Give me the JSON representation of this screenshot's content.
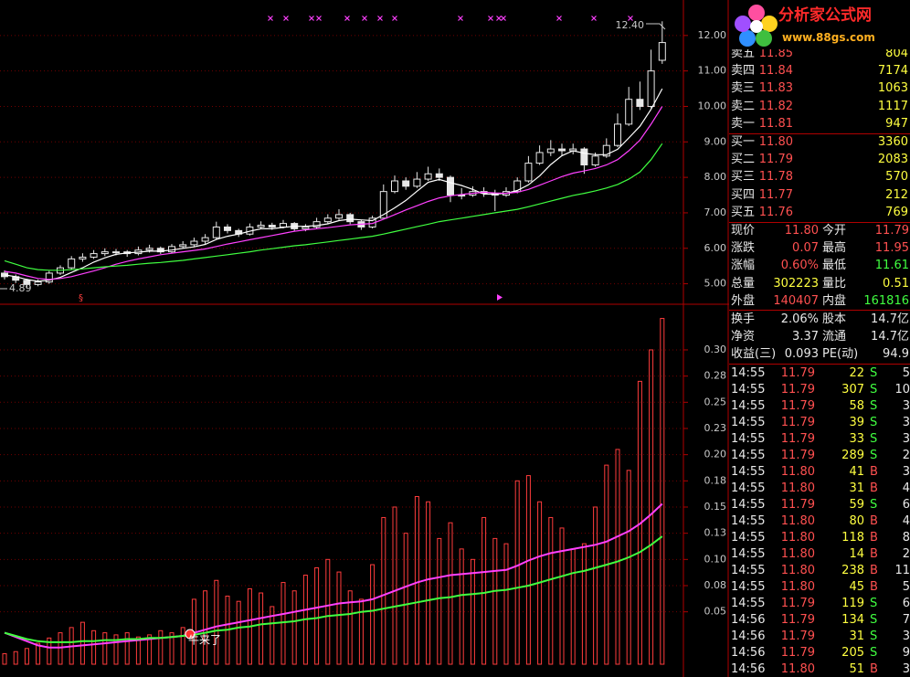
{
  "chart_data": [
    {
      "type": "candlestick",
      "color": "#e8e8e8",
      "grid": true,
      "ylim": [
        4.5,
        13
      ],
      "yticks": [
        {
          "value": 5,
          "label": "5.00"
        },
        {
          "value": 6,
          "label": "6.00"
        },
        {
          "value": 7,
          "label": "7.00"
        },
        {
          "value": 8,
          "label": "8.00"
        },
        {
          "value": 9,
          "label": "9.00"
        },
        {
          "value": 10,
          "label": "10.00"
        },
        {
          "value": 11,
          "label": "11.00"
        },
        {
          "value": 12,
          "label": "12.00"
        }
      ],
      "open": [
        5.3,
        5.2,
        5.1,
        4.98,
        5.05,
        5.3,
        5.45,
        5.7,
        5.75,
        5.85,
        5.9,
        5.9,
        5.85,
        5.95,
        6.0,
        5.9,
        6.05,
        6.1,
        6.2,
        6.3,
        6.6,
        6.5,
        6.4,
        6.6,
        6.65,
        6.6,
        6.7,
        6.55,
        6.6,
        6.75,
        6.85,
        6.95,
        6.75,
        6.6,
        6.85,
        7.6,
        7.9,
        7.75,
        7.95,
        8.1,
        8.0,
        7.5,
        7.5,
        7.6,
        7.55,
        7.5,
        7.6,
        7.9,
        8.4,
        8.7,
        8.8,
        8.75,
        8.8,
        8.35,
        8.6,
        8.9,
        9.5,
        10.2,
        10.0,
        11.3
      ],
      "high": [
        5.38,
        5.26,
        5.14,
        5.12,
        5.36,
        5.52,
        5.78,
        5.86,
        5.95,
        6.0,
        5.98,
        5.95,
        6.05,
        6.1,
        6.05,
        6.12,
        6.2,
        6.3,
        6.4,
        6.75,
        6.68,
        6.55,
        6.7,
        6.76,
        6.72,
        6.8,
        6.74,
        6.68,
        6.86,
        6.96,
        7.1,
        7.0,
        6.8,
        6.92,
        7.8,
        8.05,
        8.0,
        8.15,
        8.3,
        8.25,
        8.05,
        7.7,
        7.75,
        7.72,
        7.65,
        7.72,
        8.0,
        8.6,
        8.9,
        9.05,
        8.95,
        8.95,
        8.85,
        8.7,
        9.1,
        9.8,
        10.55,
        10.7,
        11.6,
        12.4
      ],
      "low": [
        5.12,
        5.02,
        4.89,
        4.93,
        5.0,
        5.25,
        5.4,
        5.62,
        5.7,
        5.78,
        5.8,
        5.76,
        5.8,
        5.88,
        5.84,
        5.86,
        6.0,
        6.05,
        6.12,
        6.25,
        6.42,
        6.32,
        6.36,
        6.55,
        6.52,
        6.56,
        6.48,
        6.48,
        6.56,
        6.7,
        6.8,
        6.68,
        6.52,
        6.56,
        6.85,
        7.55,
        7.65,
        7.7,
        7.9,
        7.9,
        7.3,
        7.38,
        7.45,
        7.45,
        7.05,
        7.45,
        7.55,
        7.85,
        8.35,
        8.6,
        8.6,
        8.65,
        8.1,
        8.3,
        8.55,
        8.85,
        9.45,
        9.9,
        9.95,
        11.2
      ],
      "close": [
        5.2,
        5.1,
        4.98,
        5.05,
        5.3,
        5.45,
        5.7,
        5.75,
        5.85,
        5.9,
        5.9,
        5.85,
        5.95,
        6.0,
        5.9,
        6.05,
        6.1,
        6.2,
        6.3,
        6.6,
        6.5,
        6.4,
        6.6,
        6.65,
        6.6,
        6.7,
        6.55,
        6.6,
        6.75,
        6.85,
        6.95,
        6.75,
        6.6,
        6.85,
        7.6,
        7.9,
        7.75,
        7.95,
        8.1,
        8.0,
        7.5,
        7.5,
        7.6,
        7.55,
        7.5,
        7.6,
        7.9,
        8.4,
        8.7,
        8.8,
        8.75,
        8.8,
        8.35,
        8.6,
        8.9,
        9.5,
        10.2,
        10.0,
        11.0,
        11.8
      ],
      "series": [
        {
          "color": "#ffffff",
          "values": [
            5.25,
            5.2,
            5.12,
            5.07,
            5.1,
            5.18,
            5.32,
            5.45,
            5.61,
            5.73,
            5.83,
            5.87,
            5.89,
            5.92,
            5.92,
            5.95,
            6.0,
            6.04,
            6.11,
            6.25,
            6.34,
            6.4,
            6.48,
            6.55,
            6.55,
            6.59,
            6.62,
            6.62,
            6.64,
            6.69,
            6.78,
            6.82,
            6.8,
            6.78,
            6.95,
            7.14,
            7.35,
            7.61,
            7.86,
            7.94,
            7.85,
            7.77,
            7.66,
            7.53,
            7.53,
            7.55,
            7.63,
            7.79,
            8.04,
            8.36,
            8.61,
            8.75,
            8.68,
            8.64,
            8.64,
            8.79,
            9.11,
            9.44,
            9.92,
            10.5
          ]
        },
        {
          "color": "#ff40ff",
          "values": [
            5.35,
            5.3,
            5.22,
            5.15,
            5.12,
            5.15,
            5.2,
            5.28,
            5.36,
            5.45,
            5.55,
            5.63,
            5.7,
            5.76,
            5.82,
            5.86,
            5.9,
            5.94,
            5.98,
            6.05,
            6.12,
            6.18,
            6.24,
            6.3,
            6.36,
            6.42,
            6.48,
            6.52,
            6.55,
            6.58,
            6.62,
            6.66,
            6.68,
            6.7,
            6.82,
            6.95,
            7.08,
            7.2,
            7.32,
            7.42,
            7.48,
            7.52,
            7.55,
            7.58,
            7.56,
            7.55,
            7.58,
            7.66,
            7.78,
            7.9,
            8.02,
            8.12,
            8.18,
            8.25,
            8.35,
            8.5,
            8.75,
            9.05,
            9.5,
            10.0
          ]
        },
        {
          "color": "#40ff40",
          "values": [
            5.65,
            5.55,
            5.45,
            5.4,
            5.38,
            5.38,
            5.4,
            5.42,
            5.45,
            5.48,
            5.5,
            5.52,
            5.55,
            5.58,
            5.6,
            5.63,
            5.66,
            5.7,
            5.74,
            5.78,
            5.82,
            5.86,
            5.9,
            5.95,
            5.99,
            6.03,
            6.07,
            6.1,
            6.14,
            6.18,
            6.22,
            6.26,
            6.3,
            6.34,
            6.4,
            6.47,
            6.54,
            6.61,
            6.68,
            6.75,
            6.8,
            6.85,
            6.9,
            6.95,
            7.0,
            7.05,
            7.1,
            7.17,
            7.25,
            7.33,
            7.41,
            7.49,
            7.55,
            7.62,
            7.7,
            7.8,
            7.95,
            8.15,
            8.5,
            8.95
          ]
        }
      ],
      "annotations": [
        "12.40",
        "4.89"
      ]
    },
    {
      "type": "bar",
      "color": "#ff3c3c",
      "grid": true,
      "ylim": [
        0,
        0.34
      ],
      "yticks": [
        {
          "value": 0.05,
          "label": "0.05"
        },
        {
          "value": 0.075,
          "label": "0.08"
        },
        {
          "value": 0.1,
          "label": "0.10"
        },
        {
          "value": 0.125,
          "label": "0.13"
        },
        {
          "value": 0.15,
          "label": "0.15"
        },
        {
          "value": 0.175,
          "label": "0.18"
        },
        {
          "value": 0.2,
          "label": "0.20"
        },
        {
          "value": 0.225,
          "label": "0.23"
        },
        {
          "value": 0.25,
          "label": "0.25"
        },
        {
          "value": 0.275,
          "label": "0.28"
        },
        {
          "value": 0.3,
          "label": "0.30"
        }
      ],
      "values": [
        0.01,
        0.012,
        0.015,
        0.02,
        0.025,
        0.03,
        0.035,
        0.04,
        0.032,
        0.03,
        0.028,
        0.03,
        0.026,
        0.028,
        0.032,
        0.03,
        0.035,
        0.062,
        0.07,
        0.08,
        0.065,
        0.06,
        0.072,
        0.068,
        0.055,
        0.078,
        0.07,
        0.085,
        0.092,
        0.1,
        0.088,
        0.07,
        0.062,
        0.095,
        0.14,
        0.15,
        0.125,
        0.16,
        0.155,
        0.12,
        0.135,
        0.11,
        0.1,
        0.14,
        0.12,
        0.115,
        0.175,
        0.18,
        0.155,
        0.14,
        0.13,
        0.11,
        0.115,
        0.15,
        0.19,
        0.205,
        0.185,
        0.27,
        0.3,
        0.33
      ],
      "series": [
        {
          "color": "#ff40ff",
          "values": [
            0.03,
            0.026,
            0.022,
            0.018,
            0.016,
            0.016,
            0.017,
            0.018,
            0.019,
            0.02,
            0.021,
            0.022,
            0.023,
            0.024,
            0.025,
            0.026,
            0.027,
            0.03,
            0.033,
            0.036,
            0.038,
            0.04,
            0.042,
            0.044,
            0.046,
            0.048,
            0.05,
            0.052,
            0.054,
            0.056,
            0.058,
            0.059,
            0.06,
            0.062,
            0.066,
            0.07,
            0.074,
            0.078,
            0.081,
            0.083,
            0.085,
            0.086,
            0.087,
            0.088,
            0.089,
            0.09,
            0.094,
            0.099,
            0.103,
            0.106,
            0.108,
            0.11,
            0.112,
            0.114,
            0.117,
            0.122,
            0.127,
            0.134,
            0.143,
            0.153
          ]
        },
        {
          "color": "#40ff40",
          "values": [
            0.03,
            0.027,
            0.024,
            0.022,
            0.021,
            0.021,
            0.021,
            0.022,
            0.022,
            0.023,
            0.023,
            0.024,
            0.024,
            0.025,
            0.025,
            0.026,
            0.027,
            0.028,
            0.03,
            0.032,
            0.033,
            0.035,
            0.036,
            0.038,
            0.039,
            0.04,
            0.041,
            0.043,
            0.044,
            0.046,
            0.047,
            0.048,
            0.05,
            0.051,
            0.053,
            0.055,
            0.057,
            0.059,
            0.061,
            0.063,
            0.064,
            0.066,
            0.067,
            0.068,
            0.07,
            0.071,
            0.073,
            0.075,
            0.078,
            0.081,
            0.084,
            0.087,
            0.089,
            0.092,
            0.095,
            0.098,
            0.102,
            0.107,
            0.114,
            0.122
          ]
        }
      ],
      "annotations": [
        "牛来了"
      ]
    }
  ],
  "logo": {
    "title": "分析家公式网",
    "url": "www.88gs.com"
  },
  "order_book": {
    "asks": [
      [
        "卖五",
        "11.85",
        "804"
      ],
      [
        "卖四",
        "11.84",
        "7174"
      ],
      [
        "卖三",
        "11.83",
        "1063"
      ],
      [
        "卖二",
        "11.82",
        "1117"
      ],
      [
        "卖一",
        "11.81",
        "947"
      ]
    ],
    "bids": [
      [
        "买一",
        "11.80",
        "3360"
      ],
      [
        "买二",
        "11.79",
        "2083"
      ],
      [
        "买三",
        "11.78",
        "570"
      ],
      [
        "买四",
        "11.77",
        "212"
      ],
      [
        "买五",
        "11.76",
        "769"
      ]
    ]
  },
  "quote": [
    [
      "现价",
      "11.80",
      "今开",
      "11.79"
    ],
    [
      "涨跌",
      "0.07",
      "最高",
      "11.95"
    ],
    [
      "涨幅",
      "0.60%",
      "最低",
      "11.61"
    ],
    [
      "总量",
      "302223",
      "量比",
      "0.51"
    ],
    [
      "外盘",
      "140407",
      "内盘",
      "161816"
    ],
    [
      "换手",
      "2.06%",
      "股本",
      "14.7亿"
    ],
    [
      "净资",
      "3.37",
      "流通",
      "14.7亿"
    ],
    [
      "收益(三)",
      "0.093",
      "PE(动)",
      "94.9"
    ]
  ],
  "trades": [
    [
      "14:55",
      "11.79",
      "22",
      "S",
      "5"
    ],
    [
      "14:55",
      "11.79",
      "307",
      "S",
      "10"
    ],
    [
      "14:55",
      "11.79",
      "58",
      "S",
      "3"
    ],
    [
      "14:55",
      "11.79",
      "39",
      "S",
      "3"
    ],
    [
      "14:55",
      "11.79",
      "33",
      "S",
      "3"
    ],
    [
      "14:55",
      "11.79",
      "289",
      "S",
      "2"
    ],
    [
      "14:55",
      "11.80",
      "41",
      "B",
      "3"
    ],
    [
      "14:55",
      "11.80",
      "31",
      "B",
      "4"
    ],
    [
      "14:55",
      "11.79",
      "59",
      "S",
      "6"
    ],
    [
      "14:55",
      "11.80",
      "80",
      "B",
      "4"
    ],
    [
      "14:55",
      "11.80",
      "118",
      "B",
      "8"
    ],
    [
      "14:55",
      "11.80",
      "14",
      "B",
      "2"
    ],
    [
      "14:55",
      "11.80",
      "238",
      "B",
      "11"
    ],
    [
      "14:55",
      "11.80",
      "45",
      "B",
      "5"
    ],
    [
      "14:55",
      "11.79",
      "119",
      "S",
      "6"
    ],
    [
      "14:56",
      "11.79",
      "134",
      "S",
      "7"
    ],
    [
      "14:56",
      "11.79",
      "31",
      "S",
      "3"
    ],
    [
      "14:56",
      "11.79",
      "205",
      "S",
      "9"
    ],
    [
      "14:56",
      "11.80",
      "51",
      "B",
      "3"
    ]
  ]
}
